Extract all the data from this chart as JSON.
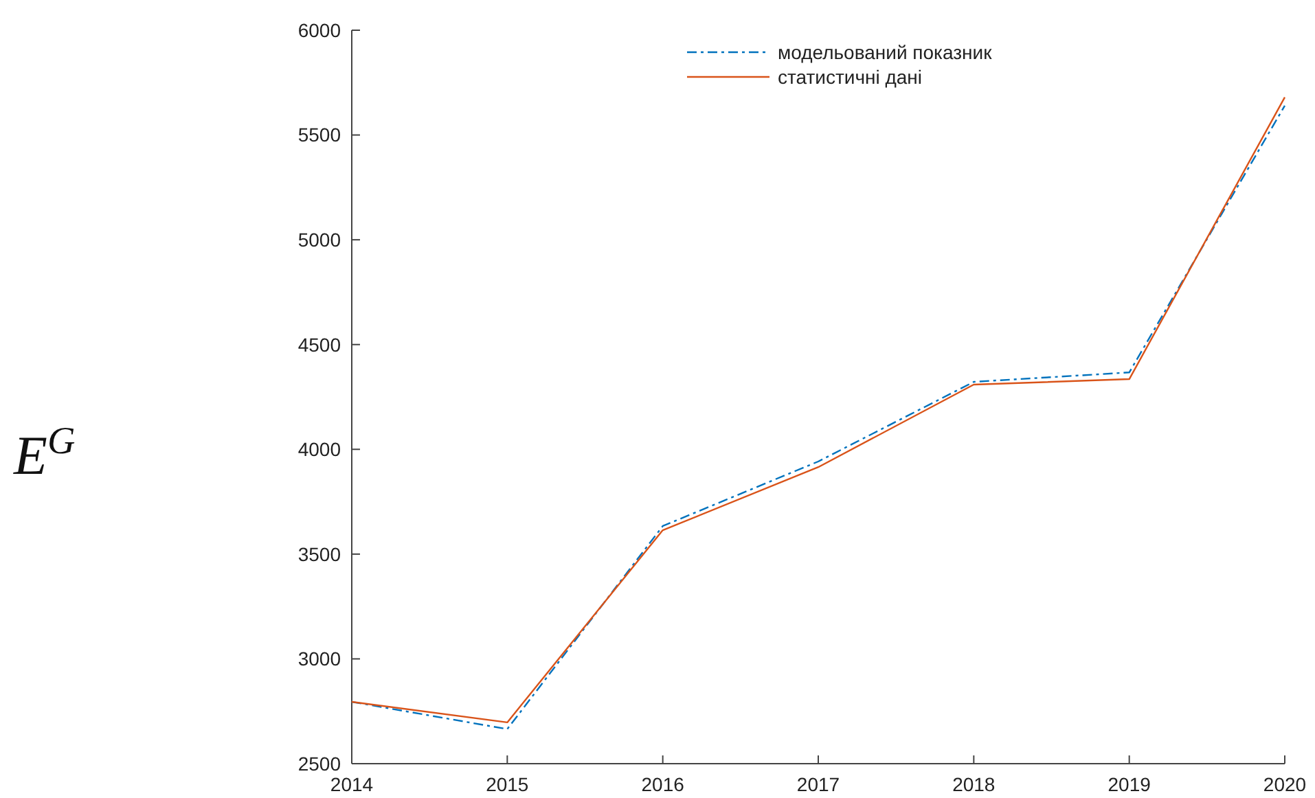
{
  "chart_data": {
    "type": "line",
    "ylabel": "E$^{G}$",
    "x": [
      2014,
      2015,
      2016,
      2017,
      2018,
      2019,
      2020
    ],
    "xlim": [
      2014,
      2020
    ],
    "xticks": [
      2014,
      2015,
      2016,
      2017,
      2018,
      2019,
      2020
    ],
    "ylim": [
      2500,
      6000
    ],
    "yticks": [
      2500,
      3000,
      3500,
      4000,
      4500,
      5000,
      5500,
      6000
    ],
    "legend": "top right",
    "series": [
      {
        "name": "модельований показник",
        "color": "#0072bd",
        "line_style": "dashdot",
        "values": [
          2795,
          2665,
          3634,
          3942,
          4322,
          4367,
          5640
        ]
      },
      {
        "name": "статистичні дані",
        "color": "#d95319",
        "line_style": "solid",
        "values": [
          2795,
          2697,
          3614,
          3915,
          4309,
          4335,
          5680
        ]
      }
    ]
  }
}
